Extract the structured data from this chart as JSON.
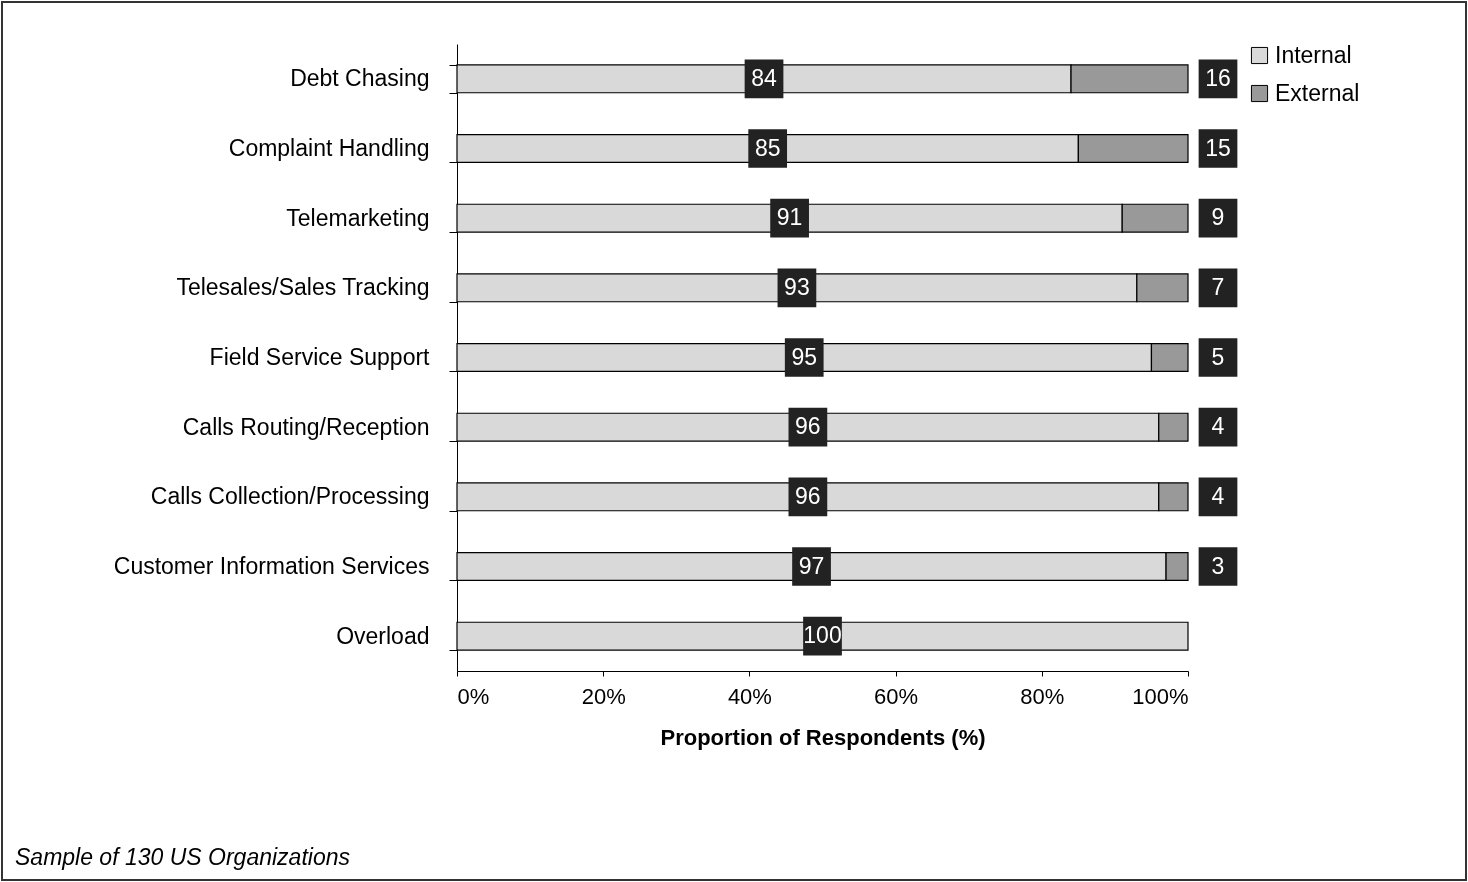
{
  "chart_data": {
    "type": "bar",
    "orientation": "horizontal",
    "stacked": true,
    "xlabel": "Proportion of Respondents (%)",
    "categories": [
      "Debt Chasing",
      "Complaint Handling",
      "Telemarketing",
      "Telesales/Sales Tracking",
      "Field Service Support",
      "Calls Routing/Reception",
      "Calls Collection/Processing",
      "Customer Information Services",
      "Overload"
    ],
    "series": [
      {
        "name": "Internal",
        "color": "#d9d9d9",
        "values": [
          84,
          85,
          91,
          93,
          95,
          96,
          96,
          97,
          100
        ]
      },
      {
        "name": "External",
        "color": "#999999",
        "values": [
          16,
          15,
          9,
          7,
          5,
          4,
          4,
          3,
          null
        ]
      }
    ],
    "xlim": [
      0,
      100
    ],
    "xticks": [
      {
        "value": 0,
        "label": "0%"
      },
      {
        "value": 20,
        "label": "20%"
      },
      {
        "value": 40,
        "label": "40%"
      },
      {
        "value": 60,
        "label": "60%"
      },
      {
        "value": 80,
        "label": "80%"
      },
      {
        "value": 100,
        "label": "100%"
      }
    ],
    "data_labels": true,
    "legend": "right",
    "grid": false,
    "annotations": [
      "Sample of 130 US Organizations"
    ]
  }
}
